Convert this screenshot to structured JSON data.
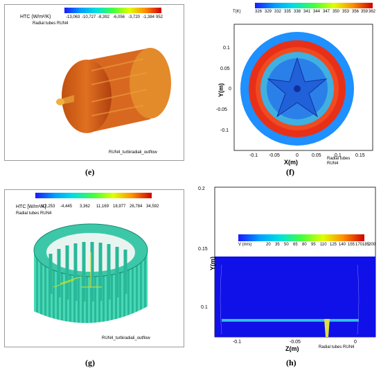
{
  "panel_e": {
    "caption": "(e)",
    "legend_title": "HTC (W/m²/K)",
    "legend_subtitle": "Radial tubes RUN4",
    "legend_ticks": [
      "-13,063",
      "-10,727",
      "-8,392",
      "-6,056",
      "-3,720",
      "-1,384",
      "952"
    ],
    "footer": "RUN4_turbiradiali_outflow"
  },
  "panel_f": {
    "caption": "(f)",
    "legend_title": "T(K)",
    "legend_ticks": [
      "326",
      "329",
      "332",
      "335",
      "338",
      "341",
      "344",
      "347",
      "350",
      "353",
      "356",
      "359",
      "362"
    ],
    "x_label": "X(m)",
    "y_label": "Y(m)",
    "x_ticks": [
      "-0.1",
      "-0.05",
      "0",
      "0.05",
      "0.1",
      "0.15"
    ],
    "y_ticks": [
      "0.1",
      "0.05",
      "0",
      "-0.05",
      "-0.1"
    ],
    "footer_line1": "Radial tubes",
    "footer_line2": "RUN4"
  },
  "panel_g": {
    "caption": "(g)",
    "legend_title": "HTC [W/m²/K]",
    "legend_subtitle": "Radial tubes RUN4",
    "legend_ticks": [
      "-12,253",
      "-4,445",
      "3,362",
      "11,169",
      "18,977",
      "26,784",
      "34,592"
    ],
    "footer": "RUN4_turbiradiali_outflow"
  },
  "panel_h": {
    "caption": "(h)",
    "legend_title": "V (m/s)",
    "legend_ticks": [
      "20",
      "35",
      "50",
      "65",
      "80",
      "95",
      "110",
      "125",
      "140",
      "155",
      "170",
      "185",
      "200"
    ],
    "x_label": "Z(m)",
    "y_label": "Y(m)",
    "x_ticks": [
      "-0.1",
      "-0.05",
      "0"
    ],
    "y_ticks": [
      "0.2",
      "0.15",
      "0.1"
    ],
    "footer": "Radial tubes RUN4"
  }
}
